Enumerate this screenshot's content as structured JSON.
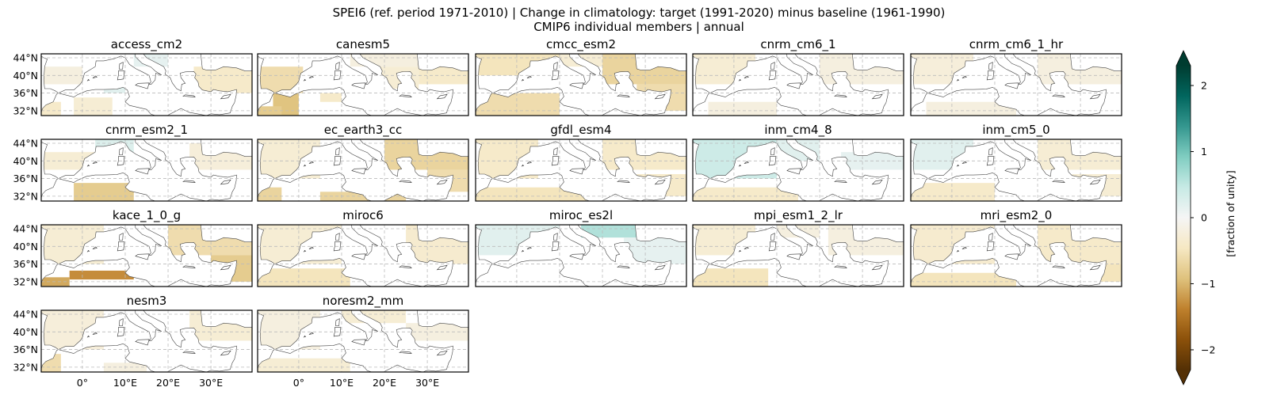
{
  "chart_data": {
    "type": "heatmap",
    "title_line1": "SPEI6 (ref. period 1971-2010) | Change in climatology: target (1991-2020) minus baseline (1961-1990)",
    "title_line2": "CMIP6 individual members | annual",
    "lon_range": [
      -9.6,
      39.6
    ],
    "lat_range": [
      30.9,
      44.9
    ],
    "lat_ticks": [
      44,
      40,
      36,
      32
    ],
    "lat_tick_labels": [
      "44°N",
      "40°N",
      "36°N",
      "32°N"
    ],
    "lon_ticks": [
      0,
      10,
      20,
      30
    ],
    "lon_tick_labels": [
      "0°",
      "10°E",
      "20°E",
      "30°E"
    ],
    "grid": true,
    "colorbar": {
      "label": "[fraction of unity]",
      "colormap": "BrBG",
      "vmin": -2.3,
      "vmax": 2.3,
      "extend": "both",
      "ticks": [
        2,
        1,
        0,
        -1,
        -2
      ],
      "tick_labels": [
        "2",
        "1",
        "0",
        "−1",
        "−2"
      ],
      "stops": [
        "#543005",
        "#8c510a",
        "#bf812d",
        "#dfc27d",
        "#f6e8c3",
        "#f5f5f5",
        "#c7eae5",
        "#80cdc1",
        "#35978f",
        "#01665e",
        "#003c30"
      ]
    },
    "panels": [
      {
        "name": "access_cm2",
        "patches": [
          [
            -9,
            38,
            0,
            42,
            -0.2
          ],
          [
            -2,
            31,
            7,
            35,
            -0.3
          ],
          [
            5,
            36,
            10,
            38,
            0.2
          ],
          [
            12,
            42,
            20,
            44.9,
            0.15
          ],
          [
            26,
            36,
            39.6,
            42,
            -0.4
          ],
          [
            -9.6,
            31,
            -5,
            34,
            -0.4
          ]
        ]
      },
      {
        "name": "canesm5",
        "patches": [
          [
            -9.6,
            36,
            1,
            42,
            -0.6
          ],
          [
            -6,
            31,
            0,
            36,
            -0.9
          ],
          [
            -9.6,
            31,
            -4,
            33,
            -0.8
          ],
          [
            5,
            34,
            10,
            36,
            -0.4
          ],
          [
            18,
            37,
            28,
            42,
            -0.3
          ],
          [
            28,
            38,
            39.6,
            42,
            -0.4
          ],
          [
            12,
            42,
            30,
            44.9,
            -0.2
          ]
        ]
      },
      {
        "name": "cmcc_esm2",
        "patches": [
          [
            -9.6,
            40,
            10,
            44.9,
            -0.5
          ],
          [
            20,
            38,
            39.6,
            44.9,
            -0.7
          ],
          [
            -9.6,
            31,
            10,
            36,
            -0.6
          ],
          [
            28,
            32,
            39.6,
            38,
            -0.6
          ],
          [
            10,
            42,
            20,
            44.9,
            -0.3
          ]
        ]
      },
      {
        "name": "cnrm_cm6_1",
        "patches": [
          [
            -9.6,
            38,
            5,
            44.9,
            -0.3
          ],
          [
            20,
            38,
            39.6,
            44.9,
            -0.2
          ],
          [
            -6,
            31,
            10,
            34,
            -0.2
          ]
        ]
      },
      {
        "name": "cnrm_cm6_1_hr",
        "patches": [
          [
            -9.6,
            38,
            5,
            44.9,
            -0.25
          ],
          [
            20,
            38,
            39.6,
            44.9,
            -0.2
          ],
          [
            -6,
            31,
            15,
            34,
            -0.2
          ]
        ]
      },
      {
        "name": "cnrm_esm2_1",
        "patches": [
          [
            -9.6,
            38,
            5,
            42,
            -0.3
          ],
          [
            3,
            42,
            12,
            44.9,
            0.25
          ],
          [
            -2,
            31,
            12,
            35,
            -0.8
          ],
          [
            25,
            38,
            39.6,
            44,
            -0.25
          ]
        ]
      },
      {
        "name": "ec_earth3_cc",
        "patches": [
          [
            -9.6,
            36,
            5,
            44.9,
            -0.3
          ],
          [
            -9.6,
            31,
            -4,
            34,
            -0.7
          ],
          [
            5,
            31,
            25,
            33,
            -0.7
          ],
          [
            20,
            38,
            39.6,
            44.9,
            -0.7
          ],
          [
            30,
            33,
            39.6,
            38,
            -0.6
          ]
        ]
      },
      {
        "name": "gfdl_esm4",
        "patches": [
          [
            -9.6,
            36,
            5,
            44.9,
            -0.4
          ],
          [
            -9.6,
            31,
            20,
            34,
            -0.5
          ],
          [
            20,
            38,
            39.6,
            44.9,
            -0.4
          ],
          [
            28,
            32,
            39.6,
            37,
            -0.4
          ]
        ]
      },
      {
        "name": "inm_cm4_8",
        "patches": [
          [
            -9.6,
            36,
            10,
            44.9,
            0.4
          ],
          [
            10,
            40,
            20,
            44.9,
            0.2
          ],
          [
            -9.6,
            31,
            15,
            34,
            -0.4
          ],
          [
            25,
            38,
            39.6,
            42,
            0.15
          ]
        ]
      },
      {
        "name": "inm_cm5_0",
        "patches": [
          [
            -9.6,
            38,
            5,
            44.9,
            0.2
          ],
          [
            -9.6,
            31,
            10,
            35,
            -0.4
          ],
          [
            20,
            38,
            39.6,
            44.9,
            -0.3
          ],
          [
            28,
            32,
            39.6,
            37,
            -0.3
          ]
        ]
      },
      {
        "name": "kace_1_0_g",
        "patches": [
          [
            -9.6,
            36,
            5,
            44.9,
            -0.3
          ],
          [
            -3,
            32.5,
            12,
            34.5,
            -1.3
          ],
          [
            -9.6,
            31,
            -3,
            33,
            -1.1
          ],
          [
            20,
            38,
            39.6,
            44.9,
            -0.6
          ],
          [
            30,
            32,
            39.6,
            38,
            -0.8
          ],
          [
            12,
            35,
            20,
            38,
            -0.4
          ]
        ]
      },
      {
        "name": "miroc6",
        "patches": [
          [
            -9.6,
            36,
            10,
            44.9,
            -0.3
          ],
          [
            -9.6,
            31,
            12,
            35,
            -0.5
          ],
          [
            25,
            36,
            39.6,
            44.9,
            -0.35
          ]
        ]
      },
      {
        "name": "miroc_es2l",
        "patches": [
          [
            -9.6,
            38,
            10,
            44.9,
            0.2
          ],
          [
            15,
            42,
            30,
            44.9,
            0.6
          ],
          [
            25,
            36,
            39.6,
            42,
            0.15
          ]
        ]
      },
      {
        "name": "mpi_esm1_2_lr",
        "patches": [
          [
            -9.6,
            38,
            5,
            44.9,
            -0.3
          ],
          [
            -9.6,
            31,
            8,
            35,
            -0.5
          ],
          [
            22,
            38,
            39.6,
            44.9,
            -0.2
          ],
          [
            10,
            42,
            20,
            44.9,
            -0.2
          ]
        ]
      },
      {
        "name": "mri_esm2_0",
        "patches": [
          [
            -9.6,
            36,
            10,
            44.9,
            -0.35
          ],
          [
            -9.6,
            31,
            15,
            34,
            -0.5
          ],
          [
            20,
            36,
            39.6,
            44.9,
            -0.4
          ],
          [
            30,
            32,
            39.6,
            36,
            -0.5
          ]
        ]
      },
      {
        "name": "nesm3",
        "patches": [
          [
            -9.6,
            36,
            5,
            44.9,
            -0.25
          ],
          [
            -9.6,
            31,
            -5,
            35,
            -0.6
          ],
          [
            25,
            38,
            39.6,
            44.9,
            -0.3
          ],
          [
            5,
            31,
            15,
            33,
            -0.2
          ]
        ]
      },
      {
        "name": "noresm2_mm",
        "patches": [
          [
            -9.6,
            36,
            5,
            44.9,
            -0.2
          ],
          [
            10,
            42,
            25,
            44.9,
            -0.3
          ],
          [
            -9.6,
            31,
            12,
            34,
            -0.3
          ],
          [
            25,
            38,
            39.6,
            42,
            -0.2
          ]
        ]
      }
    ]
  }
}
